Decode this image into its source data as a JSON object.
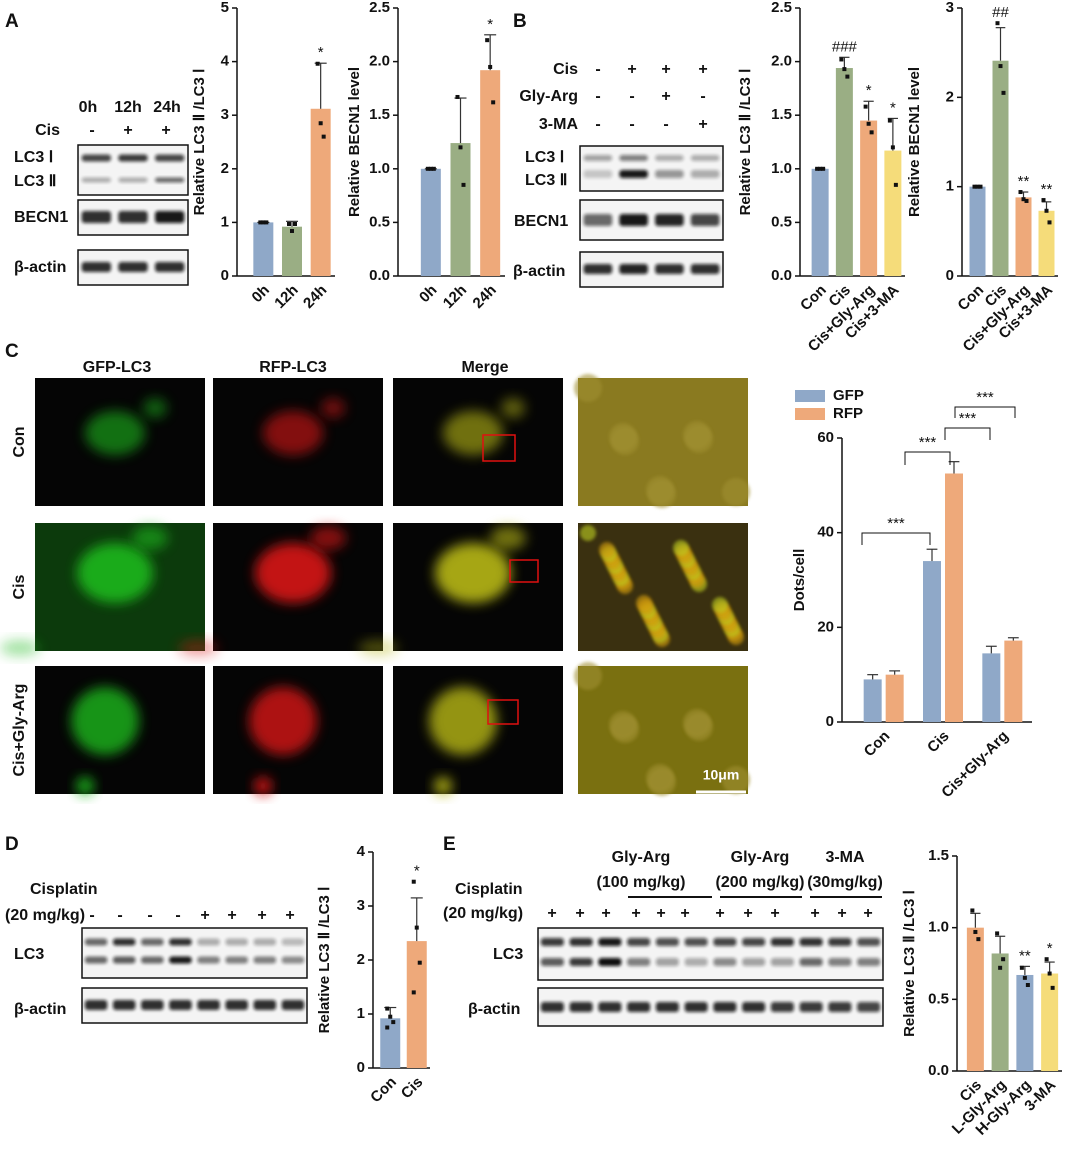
{
  "panel_labels": [
    "A",
    "B",
    "C",
    "D",
    "E"
  ],
  "blot_a": {
    "lanes": [
      "0h",
      "12h",
      "24h"
    ],
    "row_label": "Cis",
    "signs": [
      "-",
      "+",
      "+"
    ],
    "bands": [
      "LC3 Ⅰ",
      "LC3 Ⅱ",
      "BECN1",
      "β-actin"
    ]
  },
  "blot_b": {
    "rows": [
      {
        "label": "Cis",
        "signs": [
          "-",
          "+",
          "+",
          "+"
        ]
      },
      {
        "label": "Gly-Arg",
        "signs": [
          "-",
          "-",
          "+",
          "-"
        ]
      },
      {
        "label": "3-MA",
        "signs": [
          "-",
          "-",
          "-",
          "+"
        ]
      }
    ],
    "bands": [
      "LC3 Ⅰ",
      "LC3 Ⅱ",
      "BECN1",
      "β-actin"
    ]
  },
  "images_c": {
    "columns": [
      "GFP-LC3",
      "RFP-LC3",
      "Merge"
    ],
    "rows": [
      "Con",
      "Cis",
      "Cis+Gly-Arg"
    ],
    "scale_bar": "10μm"
  },
  "blot_d": {
    "treatment": "Cisplatin",
    "dose": "(20 mg/kg)",
    "signs": [
      "-",
      "-",
      "-",
      "-",
      "+",
      "+",
      "+",
      "+"
    ],
    "bands": [
      "LC3",
      "β-actin"
    ]
  },
  "blot_e": {
    "groups": [
      {
        "name": "Gly-Arg",
        "dose": "(100 mg/kg)"
      },
      {
        "name": "Gly-Arg",
        "dose": "(200 mg/kg)"
      },
      {
        "name": "3-MA",
        "dose": "(30mg/kg)"
      }
    ],
    "treatment": "Cisplatin",
    "dose": "(20 mg/kg)",
    "signs": [
      "+",
      "+",
      "+",
      "+",
      "+",
      "+",
      "+",
      "+",
      "+",
      "+",
      "+",
      "+"
    ],
    "bands": [
      "LC3",
      "β-actin"
    ]
  },
  "chart_data": [
    {
      "type": "bar",
      "y_label": "Relative LC3 Ⅱ /LC3 Ⅰ",
      "categories": [
        "0h",
        "12h",
        "24h"
      ],
      "values": [
        1,
        0.92,
        3.12
      ],
      "errors": [
        0,
        0.1,
        0.85
      ],
      "points": [
        [
          1,
          1,
          1
        ],
        [
          0.97,
          0.84,
          0.97
        ],
        [
          3.96,
          2.85,
          2.6
        ]
      ],
      "significance": [
        null,
        null,
        "*"
      ],
      "colors": [
        "#8fa8c8",
        "#9aae84",
        "#eea97a"
      ],
      "ylim": [
        0,
        5
      ],
      "yticks": [
        0,
        1,
        2,
        3,
        4,
        5
      ]
    },
    {
      "type": "bar",
      "y_label": "Relative BECN1 level",
      "categories": [
        "0h",
        "12h",
        "24h"
      ],
      "values": [
        1,
        1.24,
        1.92
      ],
      "errors": [
        0,
        0.42,
        0.33
      ],
      "points": [
        [
          1,
          1,
          1
        ],
        [
          1.67,
          1.2,
          0.85
        ],
        [
          2.2,
          1.95,
          1.62
        ]
      ],
      "significance": [
        null,
        null,
        "*"
      ],
      "colors": [
        "#8fa8c8",
        "#9aae84",
        "#eea97a"
      ],
      "ylim": [
        0,
        2.5
      ],
      "yticks": [
        {
          "value": 0,
          "label": "0.0"
        },
        0.5,
        {
          "value": 1,
          "label": "1.0"
        },
        1.5,
        {
          "value": 2,
          "label": "2.0"
        },
        2.5
      ]
    },
    {
      "type": "bar",
      "y_label": "Relative LC3 Ⅱ /LC3 Ⅰ",
      "categories": [
        "Con",
        "Cis",
        "Cis+Gly-Arg",
        "Cis+3-MA"
      ],
      "values": [
        1,
        1.94,
        1.45,
        1.17
      ],
      "errors": [
        0,
        0.1,
        0.18,
        0.3
      ],
      "points": [
        [
          1,
          1,
          1
        ],
        [
          2.02,
          1.93,
          1.86
        ],
        [
          1.58,
          1.42,
          1.34
        ],
        [
          1.45,
          1.2,
          0.85
        ]
      ],
      "significance": [
        null,
        "###",
        "*",
        "*"
      ],
      "colors": [
        "#8fa8c8",
        "#9aae84",
        "#eea97a",
        "#f5dc7a"
      ],
      "ylim": [
        0,
        2.5
      ],
      "yticks": [
        {
          "value": 0,
          "label": "0.0"
        },
        0.5,
        {
          "value": 1,
          "label": "1.0"
        },
        1.5,
        {
          "value": 2,
          "label": "2.0"
        },
        2.5
      ]
    },
    {
      "type": "bar",
      "y_label": "Relative BECN1 level",
      "categories": [
        "Con",
        "Cis",
        "Cis+Gly-Arg",
        "Cis+3-MA"
      ],
      "values": [
        1,
        2.41,
        0.88,
        0.73
      ],
      "errors": [
        0,
        0.37,
        0.06,
        0.1
      ],
      "points": [
        [
          1,
          1,
          1
        ],
        [
          2.83,
          2.35,
          2.05
        ],
        [
          0.94,
          0.86,
          0.84
        ],
        [
          0.85,
          0.73,
          0.6
        ]
      ],
      "significance": [
        null,
        "##",
        "**",
        "**"
      ],
      "colors": [
        "#8fa8c8",
        "#9aae84",
        "#eea97a",
        "#f5dc7a"
      ],
      "ylim": [
        0,
        3
      ],
      "yticks": [
        0,
        1,
        2,
        3
      ]
    },
    {
      "type": "grouped_bar",
      "y_label": "Dots/cell",
      "categories": [
        "Con",
        "Cis",
        "Cis+Gly-Arg"
      ],
      "series": [
        {
          "name": "GFP",
          "color": "#8fa8c8",
          "values": [
            9,
            34,
            14.5
          ],
          "errors": [
            1,
            2.5,
            1.5
          ]
        },
        {
          "name": "RFP",
          "color": "#eea97a",
          "values": [
            10,
            52.5,
            17.2
          ],
          "errors": [
            0.8,
            2.5,
            0.6
          ]
        }
      ],
      "brackets": [
        "***",
        "***",
        "***",
        "***"
      ],
      "legend": "top-left",
      "ylim": [
        0,
        60
      ],
      "yticks": [
        0,
        20,
        40,
        60
      ]
    },
    {
      "type": "bar",
      "y_label": "Relative LC3 Ⅱ /LC3 Ⅰ",
      "categories": [
        "Con",
        "Cis"
      ],
      "values": [
        0.92,
        2.35
      ],
      "errors": [
        0.2,
        0.8
      ],
      "points": [
        [
          1.1,
          0.95,
          0.85,
          0.75
        ],
        [
          3.45,
          2.6,
          1.95,
          1.4
        ]
      ],
      "significance": [
        null,
        "*"
      ],
      "colors": [
        "#8fa8c8",
        "#eea97a"
      ],
      "ylim": [
        0,
        4
      ],
      "yticks": [
        0,
        1,
        2,
        3,
        4
      ]
    },
    {
      "type": "bar",
      "y_label": "Relative LC3 Ⅱ /LC3 Ⅰ",
      "categories": [
        "Cis",
        "L-Gly-Arg",
        "H-Gly-Arg",
        "3-MA"
      ],
      "values": [
        1,
        0.82,
        0.67,
        0.68
      ],
      "errors": [
        0.1,
        0.12,
        0.06,
        0.08
      ],
      "points": [
        [
          1.12,
          0.97,
          0.92
        ],
        [
          0.96,
          0.72,
          0.78
        ],
        [
          0.72,
          0.65,
          0.6
        ],
        [
          0.78,
          0.68,
          0.58
        ]
      ],
      "significance": [
        null,
        null,
        "**",
        "*"
      ],
      "colors": [
        "#eea97a",
        "#9aae84",
        "#8fa8c8",
        "#f5dc7a"
      ],
      "ylim": [
        0,
        1.5
      ],
      "yticks": [
        {
          "value": 0,
          "label": "0.0"
        },
        0.5,
        {
          "value": 1,
          "label": "1.0"
        },
        1.5
      ]
    }
  ]
}
